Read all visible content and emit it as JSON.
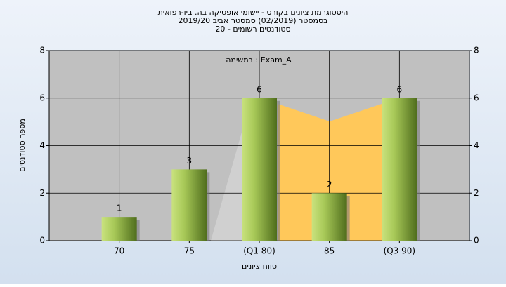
{
  "chart_data": {
    "type": "bar",
    "title_lines": [
      "היסטוגרמת ציונים בקורס - יישומי אופטיקה בה. ביו-רפואית",
      "בסמסטר  (02/2019)  סמסטר אביב 2019/20",
      "סטודנטים רשומים - 20"
    ],
    "annotation": "במשימה : Exam_A",
    "x_label": "טווח ציונים",
    "y_label": "מספר סטודנטים",
    "categories": [
      "70",
      "75",
      "(Q1 80)",
      "85",
      "(Q3 90)"
    ],
    "values": [
      1,
      3,
      6,
      2,
      6
    ],
    "ylim": [
      0,
      8
    ],
    "yticks": [
      0,
      2,
      4,
      6,
      8
    ],
    "y2lim": [
      0,
      8
    ],
    "y2ticks": [
      0,
      2,
      4,
      6,
      8
    ],
    "grid": true
  }
}
